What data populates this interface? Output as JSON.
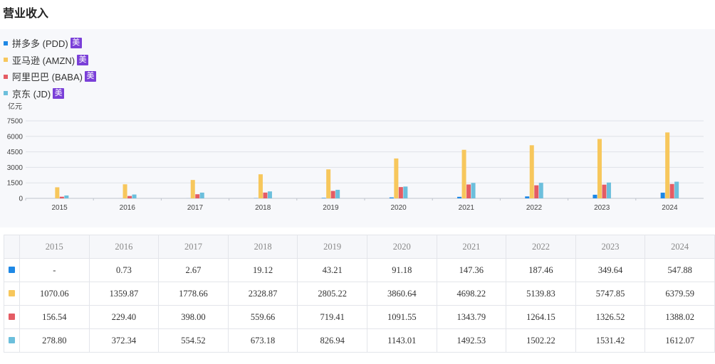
{
  "title": "营业收入",
  "colors": {
    "PDD": "#1e88e5",
    "AMZN": "#f7c75c",
    "BABA": "#e45c64",
    "JD": "#6cbfdc"
  },
  "legend": [
    {
      "key": "PDD",
      "label": "拼多多 (PDD)",
      "tag": "美"
    },
    {
      "key": "AMZN",
      "label": "亚马逊 (AMZN)",
      "tag": "美"
    },
    {
      "key": "BABA",
      "label": "阿里巴巴 (BABA)",
      "tag": "美"
    },
    {
      "key": "JD",
      "label": "京东 (JD)",
      "tag": "美"
    }
  ],
  "chart_data": {
    "type": "bar",
    "title": "营业收入",
    "ylabel": "亿元",
    "xlabel": "",
    "ylim": [
      0,
      7500
    ],
    "yticks": [
      "0",
      "1500",
      "3000",
      "4500",
      "6000",
      "7500"
    ],
    "grid": true,
    "legend_position": "top-left",
    "categories": [
      "2015",
      "2016",
      "2017",
      "2018",
      "2019",
      "2020",
      "2021",
      "2022",
      "2023",
      "2024"
    ],
    "series": [
      {
        "name": "拼多多 (PDD)",
        "key": "PDD",
        "values": [
          null,
          0.73,
          2.67,
          19.12,
          43.21,
          91.18,
          147.36,
          187.46,
          349.64,
          547.88
        ]
      },
      {
        "name": "亚马逊 (AMZN)",
        "key": "AMZN",
        "values": [
          1070.06,
          1359.87,
          1778.66,
          2328.87,
          2805.22,
          3860.64,
          4698.22,
          5139.83,
          5747.85,
          6379.59
        ]
      },
      {
        "name": "阿里巴巴 (BABA)",
        "key": "BABA",
        "values": [
          156.54,
          229.4,
          398.0,
          559.66,
          719.41,
          1091.55,
          1343.79,
          1264.15,
          1326.52,
          1388.02
        ]
      },
      {
        "name": "京东 (JD)",
        "key": "JD",
        "values": [
          278.8,
          372.34,
          554.52,
          673.18,
          826.94,
          1143.01,
          1492.53,
          1502.22,
          1531.42,
          1612.07
        ]
      }
    ]
  },
  "table": {
    "headers": [
      "2015",
      "2016",
      "2017",
      "2018",
      "2019",
      "2020",
      "2021",
      "2022",
      "2023",
      "2024"
    ],
    "rows": [
      {
        "key": "PDD",
        "cells": [
          "-",
          "0.73",
          "2.67",
          "19.12",
          "43.21",
          "91.18",
          "147.36",
          "187.46",
          "349.64",
          "547.88"
        ]
      },
      {
        "key": "AMZN",
        "cells": [
          "1070.06",
          "1359.87",
          "1778.66",
          "2328.87",
          "2805.22",
          "3860.64",
          "4698.22",
          "5139.83",
          "5747.85",
          "6379.59"
        ]
      },
      {
        "key": "BABA",
        "cells": [
          "156.54",
          "229.40",
          "398.00",
          "559.66",
          "719.41",
          "1091.55",
          "1343.79",
          "1264.15",
          "1326.52",
          "1388.02"
        ]
      },
      {
        "key": "JD",
        "cells": [
          "278.80",
          "372.34",
          "554.52",
          "673.18",
          "826.94",
          "1143.01",
          "1492.53",
          "1502.22",
          "1531.42",
          "1612.07"
        ]
      }
    ]
  }
}
